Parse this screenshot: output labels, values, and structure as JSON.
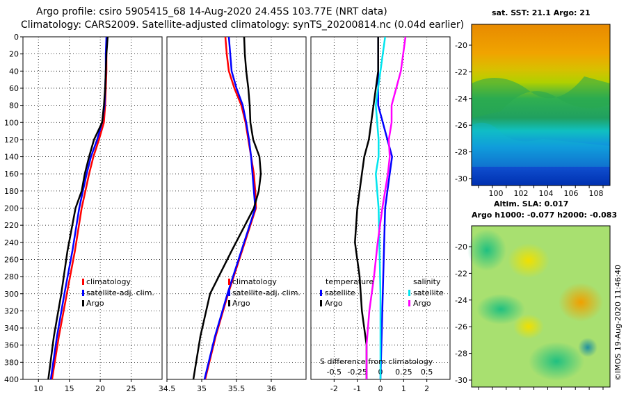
{
  "header": {
    "line1": "Argo profile: csiro 5905415_68 14-Aug-2020 24.45S 103.77E (NRT data)",
    "line2": "Climatology: CARS2009. Satellite-adjusted climatology: synTS_20200814.nc (0.04d earlier)"
  },
  "credit": "©IMOS 19-Aug-2020 11:46:40",
  "colors": {
    "climatology": "#ff0000",
    "satellite": "#0000ff",
    "argo": "#000000",
    "sat_salinity": "#00e5ee",
    "argo_salinity": "#ff00ff"
  },
  "chart_data": [
    {
      "type": "line",
      "name": "temperature-profile",
      "xlim": [
        7.5,
        30
      ],
      "ylim": [
        0,
        400
      ],
      "y_inverted": true,
      "xticks": [
        "10",
        "15",
        "20",
        "25"
      ],
      "yticks": [
        "0",
        "20",
        "40",
        "60",
        "80",
        "100",
        "120",
        "140",
        "160",
        "180",
        "200",
        "220",
        "240",
        "260",
        "280",
        "300",
        "320",
        "340",
        "360",
        "380",
        "400"
      ],
      "legend": [
        "climatology",
        "satellite-adj. clim.",
        "Argo"
      ],
      "series": [
        {
          "name": "climatology",
          "depth": [
            0,
            20,
            40,
            60,
            80,
            100,
            120,
            140,
            160,
            180,
            200,
            250,
            300,
            350,
            400
          ],
          "values": [
            21.1,
            21.0,
            21.0,
            20.9,
            20.8,
            20.6,
            19.8,
            18.9,
            18.2,
            17.6,
            17.0,
            15.9,
            14.6,
            13.3,
            12.2
          ]
        },
        {
          "name": "satellite-adj. clim.",
          "depth": [
            0,
            20,
            40,
            60,
            80,
            100,
            120,
            140,
            160,
            180,
            200,
            250,
            300,
            350,
            400
          ],
          "values": [
            21.0,
            20.9,
            20.9,
            20.8,
            20.7,
            20.3,
            19.5,
            18.5,
            17.8,
            17.2,
            16.6,
            15.5,
            14.2,
            13.0,
            12.0
          ]
        },
        {
          "name": "Argo",
          "depth": [
            0,
            20,
            40,
            60,
            80,
            100,
            120,
            140,
            160,
            180,
            200,
            250,
            300,
            350,
            400
          ],
          "values": [
            21.2,
            21.0,
            20.9,
            20.8,
            20.6,
            20.3,
            19.0,
            18.2,
            17.5,
            17.0,
            16.0,
            14.7,
            13.7,
            12.5,
            11.6
          ]
        }
      ]
    },
    {
      "type": "line",
      "name": "salinity-profile",
      "xlim": [
        34.5,
        36.5
      ],
      "ylim": [
        0,
        400
      ],
      "y_inverted": true,
      "xticks": [
        "34.5",
        "35",
        "35.5",
        "36"
      ],
      "legend": [
        "climatology",
        "satellite-adj. clim.",
        "Argo"
      ],
      "series": [
        {
          "name": "climatology",
          "depth": [
            0,
            20,
            40,
            60,
            80,
            100,
            120,
            140,
            160,
            180,
            200,
            250,
            300,
            350,
            400
          ],
          "values": [
            35.34,
            35.36,
            35.39,
            35.47,
            35.57,
            35.63,
            35.67,
            35.71,
            35.75,
            35.77,
            35.78,
            35.58,
            35.38,
            35.2,
            35.05
          ]
        },
        {
          "name": "satellite-adj. clim.",
          "depth": [
            0,
            20,
            40,
            60,
            80,
            100,
            120,
            140,
            160,
            180,
            200,
            250,
            300,
            350,
            400
          ],
          "values": [
            35.39,
            35.41,
            35.43,
            35.5,
            35.59,
            35.64,
            35.68,
            35.71,
            35.73,
            35.75,
            35.77,
            35.57,
            35.37,
            35.19,
            35.04
          ]
        },
        {
          "name": "Argo",
          "depth": [
            0,
            20,
            40,
            60,
            80,
            100,
            120,
            140,
            160,
            180,
            200,
            250,
            300,
            350,
            400
          ],
          "values": [
            35.61,
            35.62,
            35.64,
            35.67,
            35.69,
            35.7,
            35.74,
            35.83,
            35.85,
            35.82,
            35.75,
            35.43,
            35.12,
            34.98,
            34.88
          ]
        }
      ]
    },
    {
      "type": "line",
      "name": "difference-from-climatology",
      "xlim": [
        -3,
        3
      ],
      "ylim": [
        0,
        400
      ],
      "y_inverted": true,
      "xticks": [
        "-2",
        "-1",
        "0",
        "1",
        "2"
      ],
      "xticks_salinity": [
        "-0.5",
        "-0.25",
        "0",
        "0.25",
        "0.5"
      ],
      "xlabel": "S difference from climatology",
      "legend_temperature_title": "temperature",
      "legend_salinity_title": "salinity",
      "legend_temperature": [
        "satellite",
        "Argo"
      ],
      "legend_salinity": [
        "satellite",
        "Argo"
      ],
      "series": [
        {
          "name": "temperature satellite",
          "depth": [
            0,
            40,
            80,
            120,
            140,
            160,
            200,
            300,
            400
          ],
          "values": [
            -0.1,
            -0.1,
            -0.1,
            0.3,
            0.5,
            0.4,
            0.2,
            0.1,
            0.0
          ]
        },
        {
          "name": "temperature Argo",
          "depth": [
            0,
            40,
            80,
            120,
            140,
            160,
            200,
            240,
            280,
            320,
            360,
            400
          ],
          "values": [
            -0.1,
            -0.1,
            -0.3,
            -0.5,
            -0.7,
            -0.8,
            -1.0,
            -1.1,
            -0.9,
            -0.8,
            -0.6,
            -0.6
          ]
        },
        {
          "name": "salinity satellite",
          "depth": [
            0,
            40,
            80,
            120,
            140,
            160,
            200,
            300,
            400
          ],
          "values": [
            0.05,
            0.0,
            -0.05,
            -0.02,
            -0.02,
            -0.05,
            -0.02,
            0.0,
            0.0
          ]
        },
        {
          "name": "salinity Argo",
          "depth": [
            0,
            40,
            80,
            100,
            120,
            140,
            160,
            200,
            240,
            280,
            320,
            360,
            400
          ],
          "values": [
            0.27,
            0.22,
            0.12,
            0.12,
            0.09,
            0.1,
            0.08,
            0.02,
            -0.03,
            -0.07,
            -0.12,
            -0.15,
            -0.15
          ]
        }
      ]
    },
    {
      "type": "heatmap",
      "name": "sst-map",
      "title": "sat. SST: 21.1 Argo: 21",
      "yticks": [
        "-20",
        "-22",
        "-24",
        "-26",
        "-28",
        "-30"
      ],
      "xticks": [
        "100",
        "102",
        "104",
        "106",
        "108"
      ]
    },
    {
      "type": "heatmap",
      "name": "sla-map",
      "title": "Altim. SLA: 0.017",
      "subtitle": "Argo h1000: -0.077 h2000: -0.083",
      "yticks": [
        "-20",
        "-22",
        "-24",
        "-26",
        "-28",
        "-30"
      ]
    }
  ]
}
